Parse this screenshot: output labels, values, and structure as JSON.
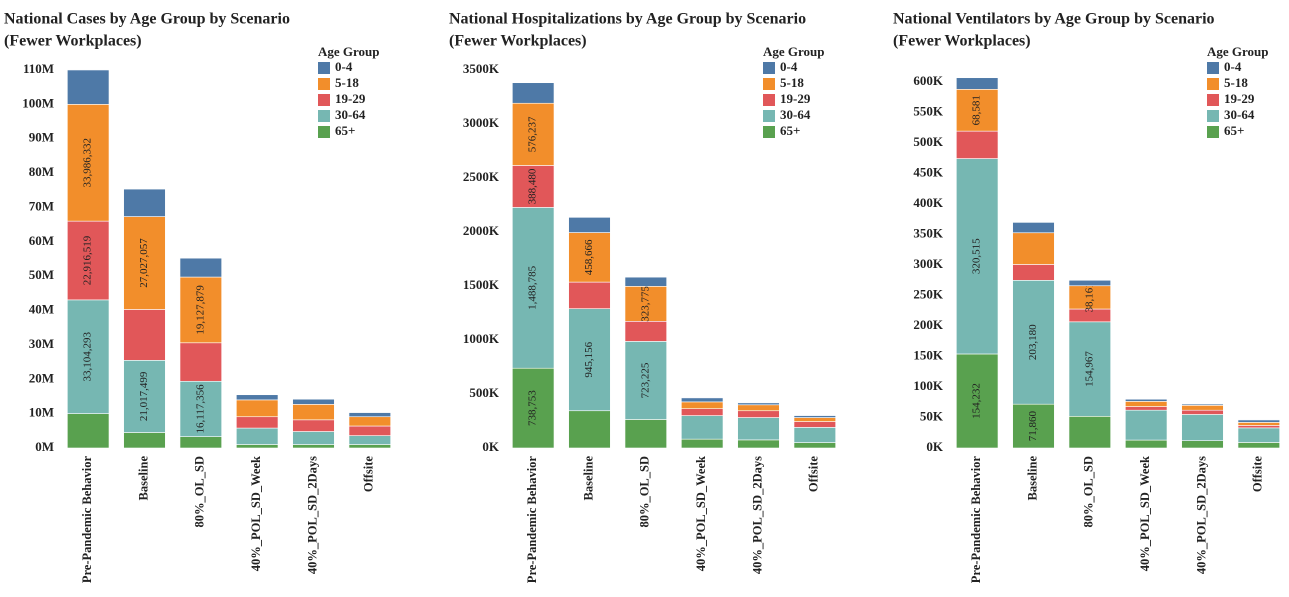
{
  "chart_data": [
    {
      "type": "bar",
      "stacked": true,
      "title": "National Cases by Age Group by Scenario",
      "subtitle": "(Fewer Workplaces)",
      "legend_title": "Age Group",
      "categories": [
        "Pre-Pandemic Behavior",
        "Baseline",
        "80%_OL_SD",
        "40%_POL_SD_Week",
        "40%_POL_SD_2Days",
        "Offsite"
      ],
      "series": [
        {
          "name": "0-4",
          "color": "#4e79a7",
          "values": [
            10000000,
            8000000,
            5500000,
            1500000,
            1500000,
            1200000
          ]
        },
        {
          "name": "5-18",
          "color": "#f28e2b",
          "values": [
            33986332,
            27027057,
            19127879,
            4900000,
            4500000,
            2700000
          ],
          "value_labels": [
            "33,986,332",
            "27,027,057",
            "19,127,879",
            null,
            null,
            null
          ]
        },
        {
          "name": "19-29",
          "color": "#e15759",
          "values": [
            22916519,
            14800000,
            11200000,
            3300000,
            3400000,
            2800000
          ],
          "value_labels": [
            "22,916,519",
            null,
            null,
            null,
            null,
            null
          ]
        },
        {
          "name": "30-64",
          "color": "#76b7b2",
          "values": [
            33104293,
            21017499,
            16117356,
            4800000,
            3800000,
            2600000
          ],
          "value_labels": [
            "33,104,293",
            "21,017,499",
            "16,117,356",
            null,
            null,
            null
          ]
        },
        {
          "name": "65+",
          "color": "#59a14f",
          "values": [
            10000000,
            4500000,
            3300000,
            1000000,
            1000000,
            1000000
          ]
        }
      ],
      "ylim": [
        0,
        110000000
      ],
      "yticks": [
        {
          "value": 0,
          "label": "0M"
        },
        {
          "value": 10000000,
          "label": "10M"
        },
        {
          "value": 20000000,
          "label": "20M"
        },
        {
          "value": 30000000,
          "label": "30M"
        },
        {
          "value": 40000000,
          "label": "40M"
        },
        {
          "value": 50000000,
          "label": "50M"
        },
        {
          "value": 60000000,
          "label": "60M"
        },
        {
          "value": 70000000,
          "label": "70M"
        },
        {
          "value": 80000000,
          "label": "80M"
        },
        {
          "value": 90000000,
          "label": "90M"
        },
        {
          "value": 100000000,
          "label": "100M"
        },
        {
          "value": 110000000,
          "label": "110M"
        }
      ],
      "grid": false
    },
    {
      "type": "bar",
      "stacked": true,
      "title": "National Hospitalizations by Age Group by Scenario",
      "subtitle": "(Fewer Workplaces)",
      "legend_title": "Age Group",
      "categories": [
        "Pre-Pandemic Behavior",
        "Baseline",
        "80%_OL_SD",
        "40%_POL_SD_Week",
        "40%_POL_SD_2Days",
        "Offsite"
      ],
      "series": [
        {
          "name": "0-4",
          "color": "#4e79a7",
          "values": [
            190000,
            141000,
            85000,
            37000,
            18000,
            18000
          ]
        },
        {
          "name": "5-18",
          "color": "#f28e2b",
          "values": [
            576237,
            458666,
            323775,
            63000,
            55000,
            37000
          ],
          "value_labels": [
            "576,237",
            "458,666",
            "323,775",
            null,
            null,
            null
          ]
        },
        {
          "name": "19-29",
          "color": "#e15759",
          "values": [
            388480,
            246000,
            186000,
            64000,
            63000,
            54000
          ],
          "value_labels": [
            "388,480",
            null,
            null,
            null,
            null,
            null
          ]
        },
        {
          "name": "30-64",
          "color": "#76b7b2",
          "values": [
            1488785,
            945156,
            723225,
            218000,
            207000,
            141000
          ],
          "value_labels": [
            "1,488,785",
            "945,156",
            "723,225",
            null,
            null,
            null
          ]
        },
        {
          "name": "65+",
          "color": "#59a14f",
          "values": [
            738753,
            345000,
            264000,
            82000,
            75000,
            50000
          ],
          "value_labels": [
            "738,753",
            null,
            null,
            null,
            null,
            null
          ]
        }
      ],
      "ylim": [
        0,
        3500000
      ],
      "yticks": [
        {
          "value": 0,
          "label": "0K"
        },
        {
          "value": 500000,
          "label": "500K"
        },
        {
          "value": 1000000,
          "label": "1000K"
        },
        {
          "value": 1500000,
          "label": "1500K"
        },
        {
          "value": 2000000,
          "label": "2000K"
        },
        {
          "value": 2500000,
          "label": "2500K"
        },
        {
          "value": 3000000,
          "label": "3000K"
        },
        {
          "value": 3500000,
          "label": "3500K"
        }
      ],
      "grid": false
    },
    {
      "type": "bar",
      "stacked": true,
      "title": "National Ventilators by Age Group by Scenario",
      "subtitle": "(Fewer Workplaces)",
      "legend_title": "Age Group",
      "categories": [
        "Pre-Pandemic Behavior",
        "Baseline",
        "80%_OL_SD",
        "40%_POL_SD_Week",
        "40%_POL_SD_2Days",
        "Offsite"
      ],
      "series": [
        {
          "name": "0-4",
          "color": "#4e79a7",
          "values": [
            19000,
            17000,
            9000,
            3500,
            2000,
            4000
          ]
        },
        {
          "name": "5-18",
          "color": "#f28e2b",
          "values": [
            68581,
            52000,
            38161,
            8500,
            8000,
            5000
          ],
          "value_labels": [
            "68,581",
            null,
            "38,161",
            null,
            null,
            null
          ]
        },
        {
          "name": "19-29",
          "color": "#e15759",
          "values": [
            45000,
            26000,
            21000,
            6000,
            7000,
            4000
          ]
        },
        {
          "name": "30-64",
          "color": "#76b7b2",
          "values": [
            320515,
            203180,
            154967,
            49000,
            43000,
            24000
          ],
          "value_labels": [
            "320,515",
            "203,180",
            "154,967",
            null,
            null,
            null
          ]
        },
        {
          "name": "65+",
          "color": "#59a14f",
          "values": [
            154232,
            71860,
            52000,
            13000,
            12000,
            9000
          ],
          "value_labels": [
            "154,232",
            "71,860",
            null,
            null,
            null,
            null
          ]
        }
      ],
      "ylim": [
        0,
        620000
      ],
      "yticks": [
        {
          "value": 0,
          "label": "0K"
        },
        {
          "value": 50000,
          "label": "50K"
        },
        {
          "value": 100000,
          "label": "100K"
        },
        {
          "value": 150000,
          "label": "150K"
        },
        {
          "value": 200000,
          "label": "200K"
        },
        {
          "value": 250000,
          "label": "250K"
        },
        {
          "value": 300000,
          "label": "300K"
        },
        {
          "value": 350000,
          "label": "350K"
        },
        {
          "value": 400000,
          "label": "400K"
        },
        {
          "value": 450000,
          "label": "450K"
        },
        {
          "value": 500000,
          "label": "500K"
        },
        {
          "value": 550000,
          "label": "550K"
        },
        {
          "value": 600000,
          "label": "600K"
        }
      ],
      "grid": false
    }
  ]
}
